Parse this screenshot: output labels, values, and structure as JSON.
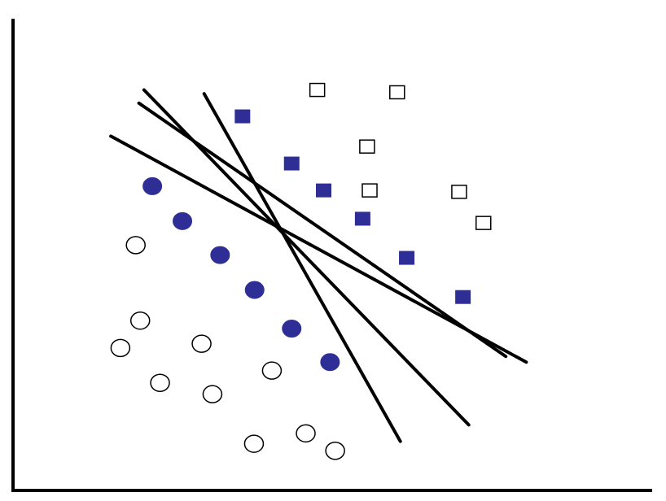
{
  "chart_data": {
    "type": "scatter",
    "title": "",
    "xlabel": "",
    "ylabel": "",
    "xlim": [
      0,
      100
    ],
    "ylim": [
      0,
      100
    ],
    "grid": false,
    "legend": "none",
    "colors": {
      "filled": "#2e2e96",
      "outline": "#000000",
      "axis": "#000000",
      "line": "#000000",
      "background": "#ffffff"
    },
    "series": [
      {
        "marker": "circle",
        "fill": "none",
        "points": [
          [
            19.2,
            52.0
          ],
          [
            19.9,
            36.0
          ],
          [
            16.8,
            30.2
          ],
          [
            29.5,
            31.1
          ],
          [
            23.0,
            22.8
          ],
          [
            31.2,
            20.4
          ],
          [
            40.5,
            25.4
          ],
          [
            45.8,
            12.1
          ],
          [
            37.7,
            9.9
          ],
          [
            50.4,
            8.4
          ]
        ]
      },
      {
        "marker": "circle",
        "fill": "filled",
        "points": [
          [
            21.8,
            64.5
          ],
          [
            26.5,
            57.1
          ],
          [
            32.4,
            49.9
          ],
          [
            37.8,
            42.5
          ],
          [
            43.6,
            34.3
          ],
          [
            49.6,
            27.2
          ]
        ]
      },
      {
        "marker": "square",
        "fill": "filled",
        "points": [
          [
            35.9,
            79.3
          ],
          [
            43.6,
            69.3
          ],
          [
            48.6,
            63.6
          ],
          [
            54.7,
            57.6
          ],
          [
            61.6,
            49.3
          ],
          [
            70.4,
            41.0
          ]
        ]
      },
      {
        "marker": "square",
        "fill": "none",
        "points": [
          [
            47.6,
            84.9
          ],
          [
            60.1,
            84.4
          ],
          [
            55.4,
            72.9
          ],
          [
            55.8,
            63.6
          ],
          [
            69.8,
            63.3
          ],
          [
            73.6,
            56.7
          ]
        ]
      }
    ],
    "lines": [
      {
        "from": [
          15.3,
          75.1
        ],
        "to": [
          80.3,
          27.2
        ]
      },
      {
        "from": [
          19.7,
          82.1
        ],
        "to": [
          77.1,
          28.4
        ]
      },
      {
        "from": [
          20.5,
          84.9
        ],
        "to": [
          71.3,
          13.9
        ]
      },
      {
        "from": [
          29.9,
          84.1
        ],
        "to": [
          60.6,
          10.4
        ]
      }
    ]
  }
}
